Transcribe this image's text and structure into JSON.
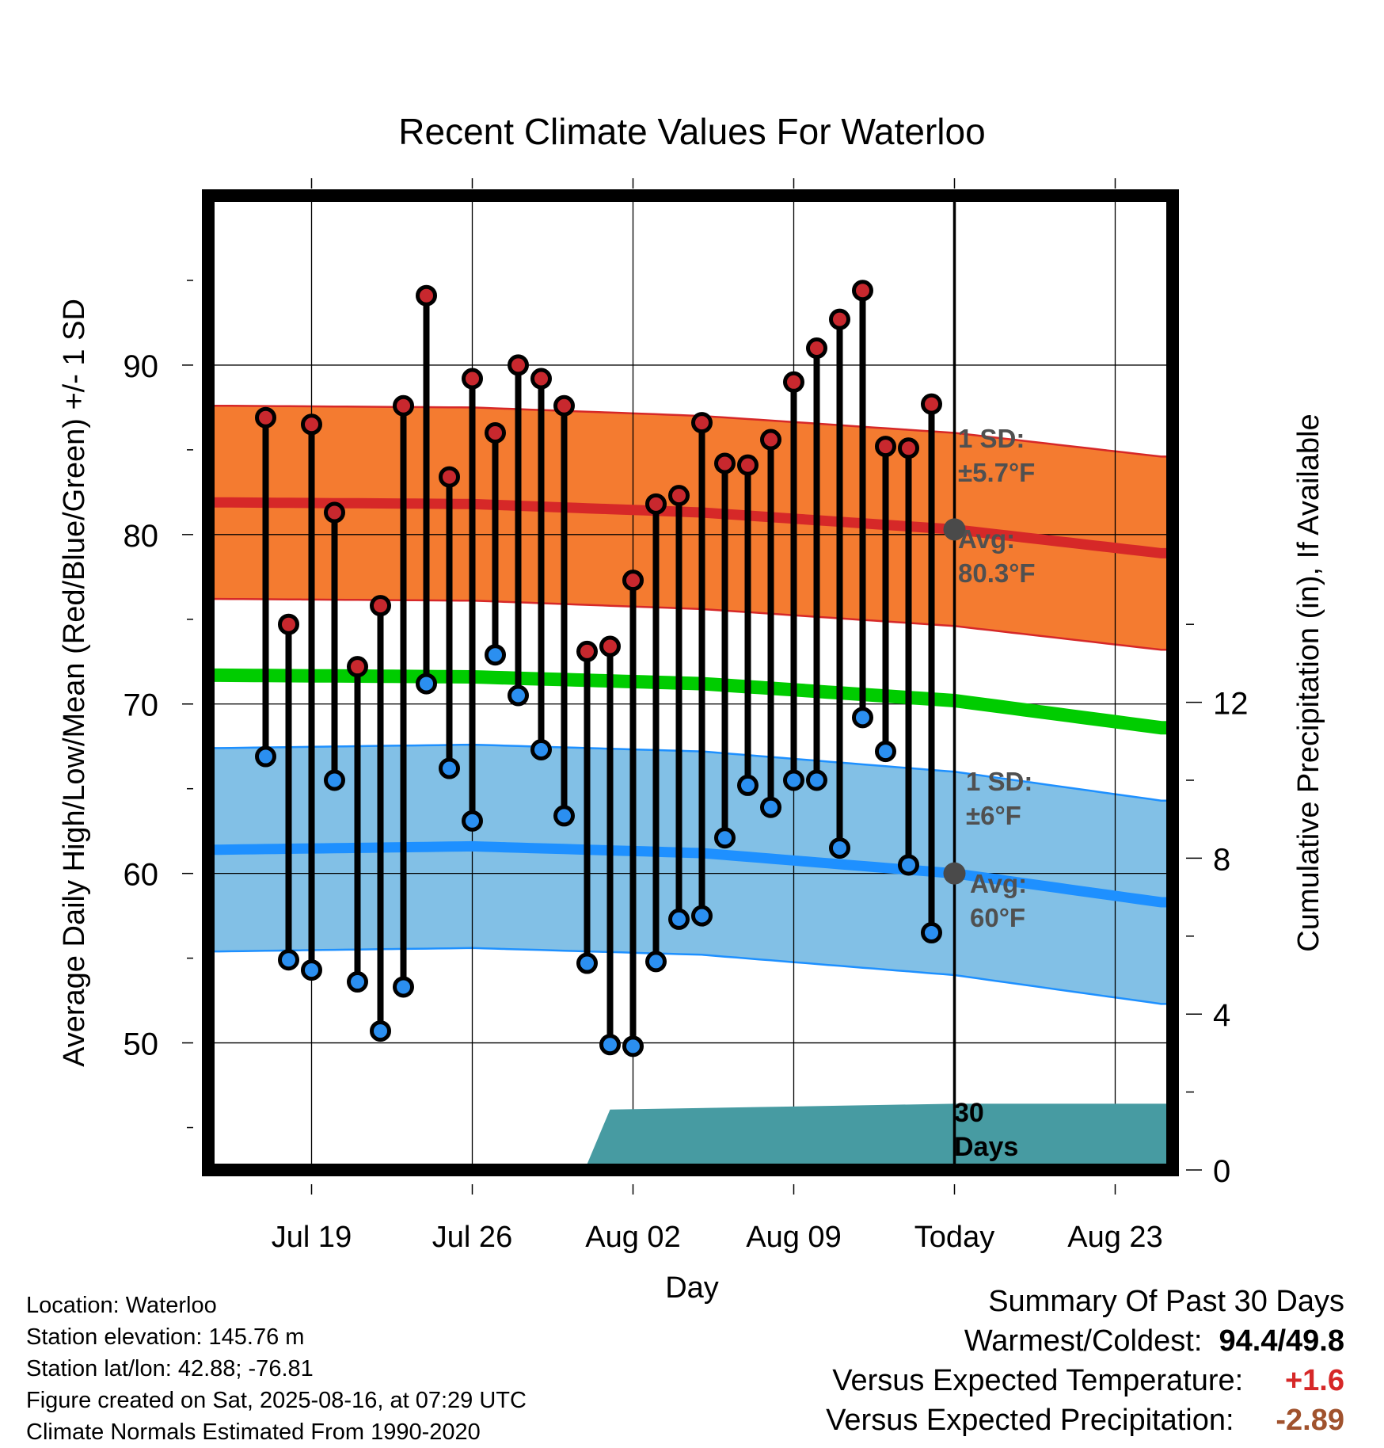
{
  "chart_data": {
    "type": "line",
    "title": "Recent Climate Values For Waterloo",
    "xlabel": "Day",
    "ylabel": "Average Daily High/Low/Mean (Red/Blue/Green) +/- 1 SD",
    "y2label": "Cumulative Precipitation (in), If Available",
    "ylim": [
      42.5,
      100
    ],
    "y2lim": [
      0,
      25
    ],
    "xlim": [
      -1.5,
      40.5
    ],
    "yticks": [
      50,
      60,
      70,
      80,
      90
    ],
    "y2ticks": [
      0,
      4,
      8,
      12
    ],
    "x_day_index_meaning": "days since Jul 16",
    "xticks": [
      {
        "day": 3,
        "label": "Jul 19"
      },
      {
        "day": 10,
        "label": "Jul 26"
      },
      {
        "day": 17,
        "label": "Aug 02"
      },
      {
        "day": 24,
        "label": "Aug 09"
      },
      {
        "day": 31,
        "label": "Today"
      },
      {
        "day": 38,
        "label": "Aug 23"
      }
    ],
    "grid": true,
    "today_day": 31,
    "today_label": "30 Days",
    "series": [
      {
        "name": "Daily High",
        "color": "#c8282e",
        "x": [
          1,
          2,
          3,
          4,
          5,
          6,
          7,
          8,
          9,
          10,
          11,
          12,
          13,
          14,
          15,
          16,
          17,
          18,
          19,
          20,
          21,
          22,
          23,
          24,
          25,
          26,
          27,
          28,
          29,
          30
        ],
        "values": [
          86.9,
          74.7,
          86.5,
          81.3,
          72.2,
          75.8,
          87.6,
          94.1,
          83.4,
          89.2,
          86.0,
          90.0,
          89.2,
          87.6,
          73.1,
          73.4,
          77.3,
          81.8,
          82.3,
          86.6,
          84.2,
          84.1,
          85.6,
          89.0,
          91.0,
          92.7,
          94.4,
          85.2,
          85.1,
          87.7
        ]
      },
      {
        "name": "Daily Low",
        "color": "#2b8ff0",
        "x": [
          1,
          2,
          3,
          4,
          5,
          6,
          7,
          8,
          9,
          10,
          11,
          12,
          13,
          14,
          15,
          16,
          17,
          18,
          19,
          20,
          21,
          22,
          23,
          24,
          25,
          26,
          27,
          28,
          29,
          30
        ],
        "values": [
          66.9,
          54.9,
          54.3,
          65.5,
          53.6,
          50.7,
          53.3,
          71.2,
          66.2,
          63.1,
          72.9,
          70.5,
          67.3,
          63.4,
          54.7,
          49.9,
          49.8,
          54.8,
          57.3,
          57.5,
          62.1,
          65.2,
          63.9,
          65.5,
          65.5,
          61.5,
          69.2,
          67.2,
          60.5,
          56.5
        ]
      }
    ],
    "normals": {
      "high": {
        "name": "Avg: 80.3°F",
        "sd_label": "1 SD: ±5.7°F",
        "x": [
          -1,
          10,
          20,
          31,
          40
        ],
        "mean": [
          81.9,
          81.8,
          81.3,
          80.3,
          78.9
        ],
        "sd": 5.7,
        "color": "#d62828",
        "band_color": "#f47b30"
      },
      "low": {
        "name": "Avg: 60°F",
        "sd_label": "1 SD: ±6°F",
        "x": [
          -1,
          10,
          20,
          31,
          40
        ],
        "mean": [
          61.4,
          61.6,
          61.2,
          60.0,
          58.3
        ],
        "sd": 6.0,
        "color": "#1e90ff",
        "band_color": "#82c0e6"
      },
      "mean": {
        "color": "#00cc00",
        "x": [
          -1,
          10,
          20,
          31,
          40
        ],
        "values": [
          71.7,
          71.6,
          71.2,
          70.2,
          68.6
        ]
      }
    },
    "precipitation": {
      "color": "#479ba2",
      "x": [
        -1,
        10,
        11,
        15,
        16,
        31,
        40
      ],
      "values": [
        0,
        0,
        0.05,
        0.15,
        1.55,
        1.7,
        1.7
      ]
    }
  },
  "labels": {
    "high_sd": [
      "1 SD:",
      "±5.7°F"
    ],
    "high_avg": [
      "Avg:",
      "80.3°F"
    ],
    "low_sd": [
      "1 SD:",
      "±6°F"
    ],
    "low_avg": [
      "Avg:",
      "60°F"
    ],
    "today": [
      "30",
      "Days"
    ]
  },
  "colors": {
    "label_gray": "#505050",
    "gray_marker": "#4a4a4a",
    "positive": "#d62828",
    "negative": "#a0522d"
  },
  "info": {
    "location": "Location: Waterloo",
    "elevation": "Station elevation: 145.76 m",
    "latlon": "Station lat/lon: 42.88; -76.81",
    "created": "Figure created on Sat, 2025-08-16, at 07:29 UTC",
    "normals": "Climate Normals Estimated From 1990-2020"
  },
  "summary": {
    "title": "Summary Of Past 30 Days",
    "warmest_label": "Warmest/Coldest:",
    "warmest_value": "94.4/49.8",
    "temp_label": "Versus Expected Temperature:",
    "temp_value": "+1.6",
    "precip_label": "Versus Expected Precipitation:",
    "precip_value": "-2.89"
  }
}
